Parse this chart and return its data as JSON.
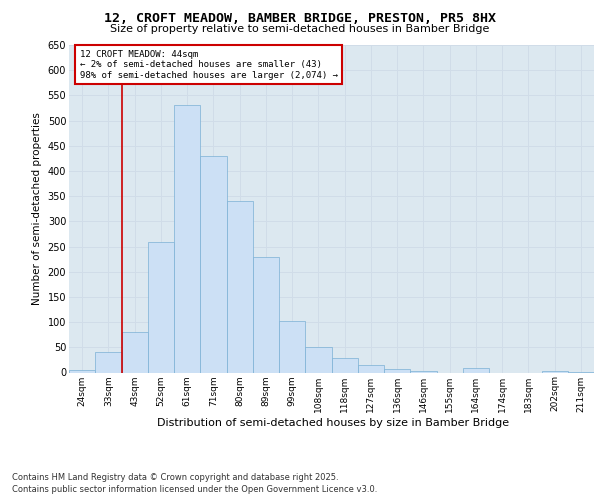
{
  "title": "12, CROFT MEADOW, BAMBER BRIDGE, PRESTON, PR5 8HX",
  "subtitle": "Size of property relative to semi-detached houses in Bamber Bridge",
  "xlabel": "Distribution of semi-detached houses by size in Bamber Bridge",
  "ylabel": "Number of semi-detached properties",
  "categories": [
    "24sqm",
    "33sqm",
    "43sqm",
    "52sqm",
    "61sqm",
    "71sqm",
    "80sqm",
    "89sqm",
    "99sqm",
    "108sqm",
    "118sqm",
    "127sqm",
    "136sqm",
    "146sqm",
    "155sqm",
    "164sqm",
    "174sqm",
    "183sqm",
    "202sqm",
    "211sqm"
  ],
  "values": [
    5,
    40,
    80,
    260,
    530,
    430,
    340,
    230,
    103,
    50,
    28,
    14,
    7,
    3,
    0,
    9,
    0,
    0,
    2,
    1
  ],
  "bar_color": "#cce0f5",
  "bar_edge_color": "#7ab0d4",
  "annotation_text_line1": "12 CROFT MEADOW: 44sqm",
  "annotation_text_line2": "← 2% of semi-detached houses are smaller (43)",
  "annotation_text_line3": "98% of semi-detached houses are larger (2,074) →",
  "red_line_color": "#cc0000",
  "annotation_box_color": "#ffffff",
  "annotation_box_edge_color": "#cc0000",
  "grid_color": "#d0dce8",
  "background_color": "#dce8f0",
  "ylim": [
    0,
    650
  ],
  "yticks": [
    0,
    50,
    100,
    150,
    200,
    250,
    300,
    350,
    400,
    450,
    500,
    550,
    600,
    650
  ],
  "footer_line1": "Contains HM Land Registry data © Crown copyright and database right 2025.",
  "footer_line2": "Contains public sector information licensed under the Open Government Licence v3.0."
}
